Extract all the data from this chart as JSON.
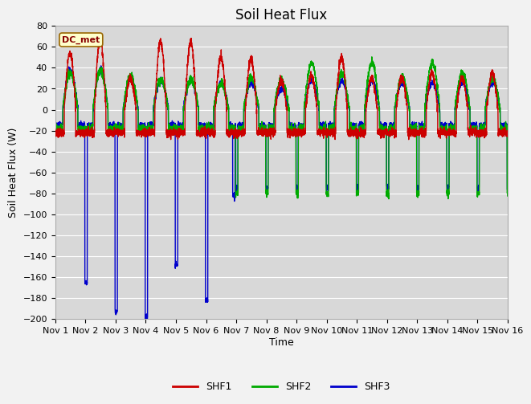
{
  "title": "Soil Heat Flux",
  "ylabel": "Soil Heat Flux (W)",
  "xlabel": "Time",
  "ylim": [
    -200,
    80
  ],
  "xlim": [
    0,
    15
  ],
  "xtick_labels": [
    "Nov 1",
    "Nov 2",
    "Nov 3",
    "Nov 4",
    "Nov 5",
    "Nov 6",
    "Nov 7",
    "Nov 8",
    "Nov 9",
    "Nov 10",
    "Nov 11",
    "Nov 12",
    "Nov 13",
    "Nov 14",
    "Nov 15",
    "Nov 16"
  ],
  "ytick_values": [
    -200,
    -180,
    -160,
    -140,
    -120,
    -100,
    -80,
    -60,
    -40,
    -20,
    0,
    20,
    40,
    60,
    80
  ],
  "colors": {
    "SHF1": "#cc0000",
    "SHF2": "#00aa00",
    "SHF3": "#0000cc"
  },
  "dc_met_label": "DC_met",
  "plot_bg": "#d8d8d8",
  "fig_bg": "#f2f2f2",
  "line_width": 1.0,
  "title_fontsize": 12,
  "axis_label_fontsize": 9,
  "tick_fontsize": 8
}
